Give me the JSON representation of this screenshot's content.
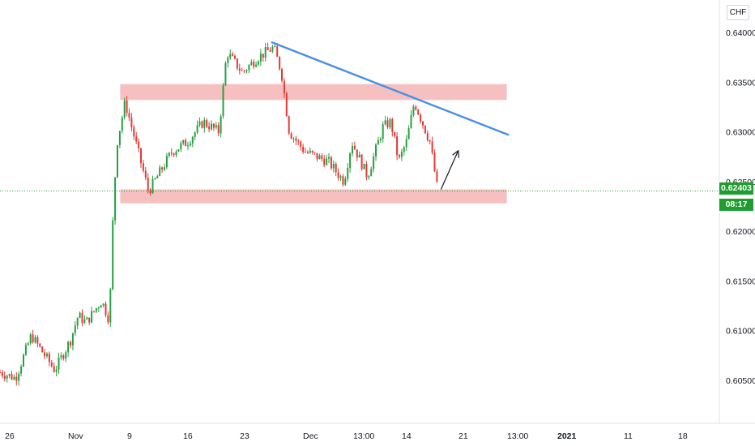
{
  "instrument": {
    "currency": "CHF",
    "last_price": "0.62403",
    "countdown": "08:17"
  },
  "colors": {
    "up": "#26a041",
    "down": "#e53935",
    "zone": "#f2a7a7",
    "trendline": "#4a8fe7",
    "last_price": "#1e9e2e",
    "arrow": "#131722"
  },
  "chart_data": {
    "type": "candlestick",
    "title": "",
    "xlabel": "",
    "ylabel": "",
    "y_ticks": [
      "0.64000",
      "0.63500",
      "0.63000",
      "0.62500",
      "0.62000",
      "0.61500",
      "0.61000",
      "0.60500"
    ],
    "x_ticks": [
      {
        "label": "26",
        "bold": false
      },
      {
        "label": "Nov",
        "bold": false
      },
      {
        "label": "9",
        "bold": false
      },
      {
        "label": "16",
        "bold": false
      },
      {
        "label": "23",
        "bold": false
      },
      {
        "label": "Dec",
        "bold": false
      },
      {
        "label": "13:00",
        "bold": false
      },
      {
        "label": "14",
        "bold": false
      },
      {
        "label": "21",
        "bold": false
      },
      {
        "label": "13:00",
        "bold": false
      },
      {
        "label": "2021",
        "bold": true
      },
      {
        "label": "11",
        "bold": false
      },
      {
        "label": "18",
        "bold": false
      }
    ],
    "ylim": [
      0.6,
      0.6445
    ],
    "last_price": 0.62403,
    "price_path": [
      {
        "date": "Oct 26",
        "price": 0.6058
      },
      {
        "date": "Oct 28",
        "price": 0.6052
      },
      {
        "date": "Oct 30",
        "price": 0.6095
      },
      {
        "date": "Nov 2",
        "price": 0.606
      },
      {
        "date": "Nov 4",
        "price": 0.609
      },
      {
        "date": "Nov 5",
        "price": 0.6115
      },
      {
        "date": "Nov 6",
        "price": 0.6108
      },
      {
        "date": "Nov 8",
        "price": 0.613
      },
      {
        "date": "Nov 9",
        "price": 0.611
      },
      {
        "date": "Nov 9 (rally)",
        "price": 0.623
      },
      {
        "date": "Nov 10",
        "price": 0.629
      },
      {
        "date": "Nov 11",
        "price": 0.633
      },
      {
        "date": "Nov 12",
        "price": 0.63
      },
      {
        "date": "Nov 14",
        "price": 0.624
      },
      {
        "date": "Nov 17",
        "price": 0.628
      },
      {
        "date": "Nov 19",
        "price": 0.629
      },
      {
        "date": "Nov 21",
        "price": 0.631
      },
      {
        "date": "Nov 23",
        "price": 0.63
      },
      {
        "date": "Nov 24",
        "price": 0.638
      },
      {
        "date": "Nov 26",
        "price": 0.636
      },
      {
        "date": "Nov 28",
        "price": 0.6375
      },
      {
        "date": "Nov 30",
        "price": 0.6385
      },
      {
        "date": "Dec 1",
        "price": 0.636
      },
      {
        "date": "Dec 2",
        "price": 0.63
      },
      {
        "date": "Dec 4",
        "price": 0.628
      },
      {
        "date": "Dec 7",
        "price": 0.627
      },
      {
        "date": "Dec 9",
        "price": 0.625
      },
      {
        "date": "Dec 10",
        "price": 0.629
      },
      {
        "date": "Dec 12",
        "price": 0.6255
      },
      {
        "date": "Dec 14",
        "price": 0.6305
      },
      {
        "date": "Dec 15",
        "price": 0.631
      },
      {
        "date": "Dec 16",
        "price": 0.627
      },
      {
        "date": "Dec 17",
        "price": 0.629
      },
      {
        "date": "Dec 18",
        "price": 0.633
      },
      {
        "date": "Dec 19",
        "price": 0.631
      },
      {
        "date": "Dec 20",
        "price": 0.629
      },
      {
        "date": "Dec 21",
        "price": 0.624
      }
    ],
    "resistance_zone": {
      "from": 0.6332,
      "to": 0.6348,
      "start": "Nov 11",
      "end": "Dec 29"
    },
    "support_zone": {
      "from": 0.6228,
      "to": 0.6242,
      "start": "Nov 11",
      "end": "Dec 29"
    },
    "trendline": {
      "start": {
        "date": "Nov 30",
        "price": 0.639
      },
      "end": {
        "date": "Dec 30",
        "price": 0.6297
      }
    },
    "projection_arrow": {
      "start": {
        "date": "Dec 21",
        "price": 0.6242
      },
      "end": {
        "date": "Dec 23",
        "price": 0.6281
      }
    },
    "grid": false,
    "legend": "none"
  }
}
